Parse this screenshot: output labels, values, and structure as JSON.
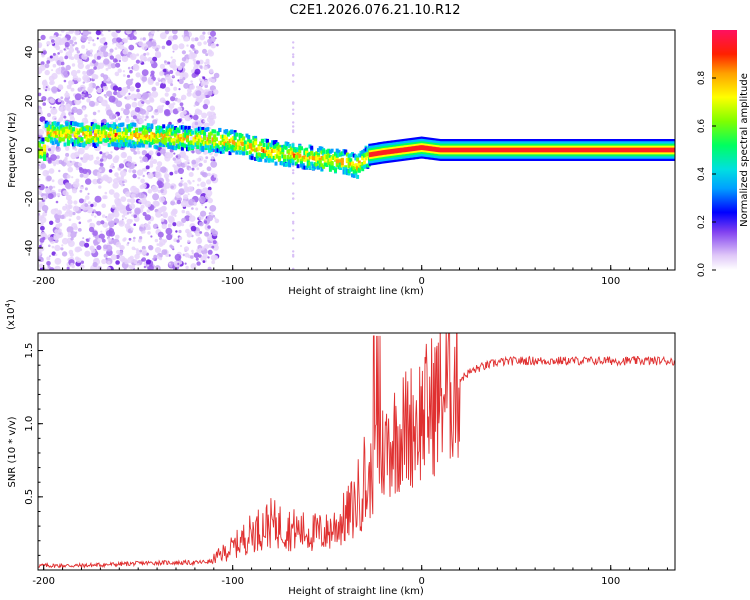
{
  "title": "C2E1.2026.076.21.10.R12",
  "chart_data": [
    {
      "type": "heatmap",
      "name": "spectrogram",
      "xlabel": "Height of straight line (km)",
      "ylabel": "Frequency (Hz)",
      "xlim": [
        -203,
        134
      ],
      "ylim": [
        -49,
        49
      ],
      "xticks": [
        -200,
        -100,
        0,
        100
      ],
      "yticks": [
        -40,
        -20,
        0,
        20,
        40
      ],
      "colorbar": {
        "label": "Normalized spectral amplitude",
        "range": [
          0,
          1
        ],
        "ticks": [
          0.0,
          0.2,
          0.4,
          0.6,
          0.8
        ],
        "tick_labels": [
          "0.0",
          "0.2",
          "0.4",
          "0.6",
          "0.8"
        ]
      },
      "ridge": [
        {
          "x": -200,
          "y": 7
        },
        {
          "x": -170,
          "y": 6
        },
        {
          "x": -150,
          "y": 6
        },
        {
          "x": -130,
          "y": 5
        },
        {
          "x": -110,
          "y": 4
        },
        {
          "x": -100,
          "y": 3
        },
        {
          "x": -90,
          "y": 1
        },
        {
          "x": -80,
          "y": -1
        },
        {
          "x": -70,
          "y": -2
        },
        {
          "x": -60,
          "y": -3
        },
        {
          "x": -50,
          "y": -4
        },
        {
          "x": -40,
          "y": -5
        },
        {
          "x": -35,
          "y": -7
        },
        {
          "x": -28,
          "y": -2
        },
        {
          "x": -20,
          "y": -1
        },
        {
          "x": -10,
          "y": 0
        },
        {
          "x": 0,
          "y": 1
        },
        {
          "x": 10,
          "y": 0
        },
        {
          "x": 134,
          "y": 0
        }
      ]
    },
    {
      "type": "line",
      "name": "snr",
      "xlabel": "Height of straight line (km)",
      "ylabel": "SNR (10 * v/v)",
      "multiplier": "(x10",
      "multiplier_exp": "4",
      "multiplier_close": ")",
      "xlim": [
        -203,
        134
      ],
      "ylim": [
        0,
        1.62
      ],
      "xticks": [
        -200,
        -100,
        0,
        100
      ],
      "yticks": [
        0.5,
        1.0,
        1.5
      ],
      "ytick_labels": [
        "0.5",
        "1.0",
        "1.5"
      ],
      "color": "#e03030",
      "x": [
        -203,
        -180,
        -160,
        -140,
        -120,
        -110,
        -100,
        -90,
        -80,
        -70,
        -60,
        -50,
        -40,
        -35,
        -30,
        -25,
        -20,
        -15,
        -10,
        -5,
        0,
        5,
        10,
        15,
        20,
        25,
        30,
        40,
        50,
        60,
        80,
        100,
        120,
        134
      ],
      "y": [
        0.03,
        0.03,
        0.04,
        0.05,
        0.05,
        0.06,
        0.12,
        0.2,
        0.25,
        0.22,
        0.2,
        0.2,
        0.28,
        0.35,
        0.5,
        0.7,
        0.82,
        0.9,
        0.95,
        1.0,
        1.05,
        1.12,
        1.2,
        1.25,
        1.3,
        1.35,
        1.38,
        1.42,
        1.43,
        1.43,
        1.43,
        1.43,
        1.43,
        1.43
      ]
    }
  ]
}
